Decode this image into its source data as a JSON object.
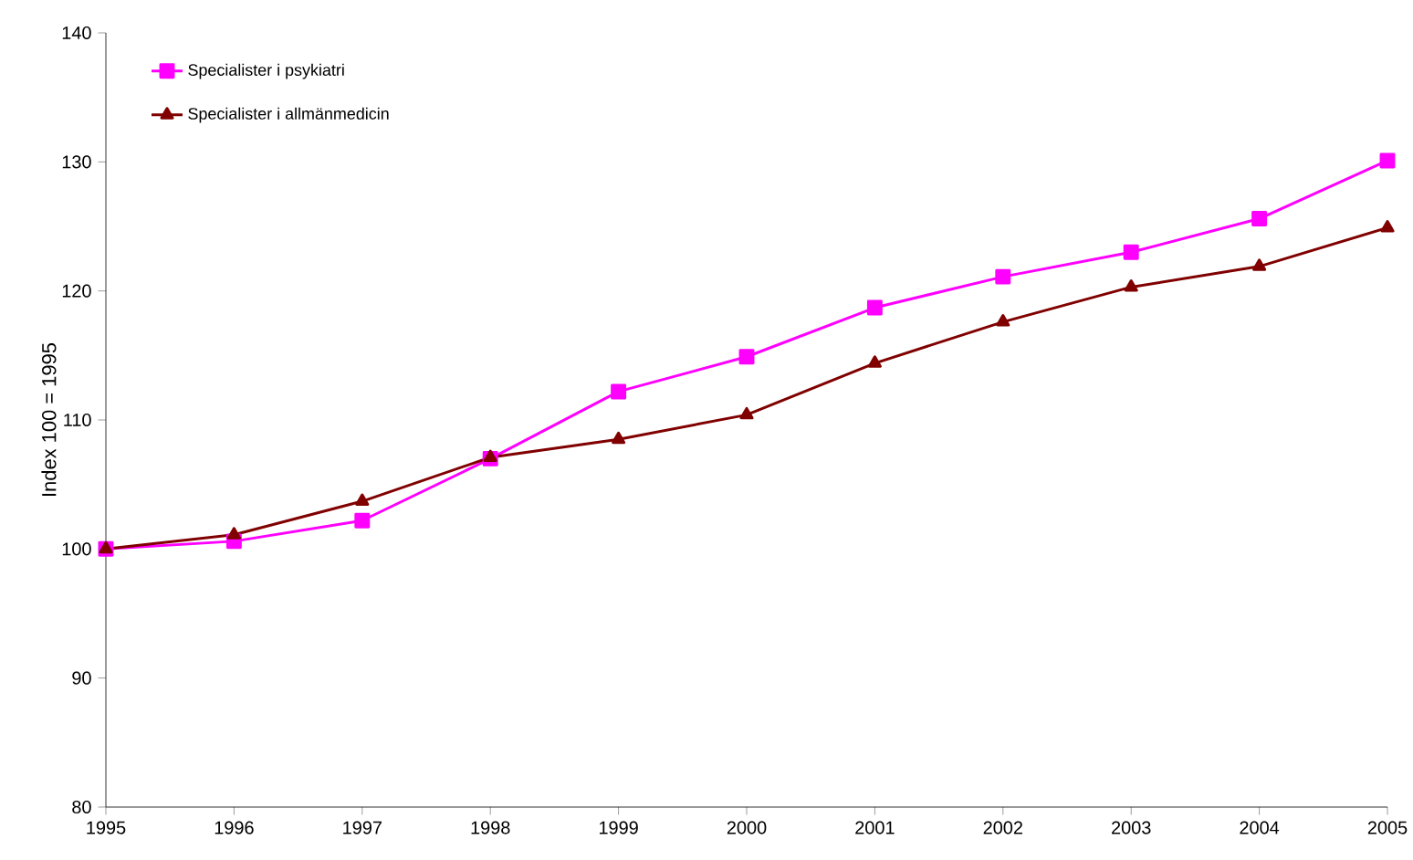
{
  "chart_data": {
    "type": "line",
    "ylabel": "Index 100 = 1995",
    "x": [
      1995,
      1996,
      1997,
      1998,
      1999,
      2000,
      2001,
      2002,
      2003,
      2004,
      2005
    ],
    "series": [
      {
        "name": "Specialister i psykiatri",
        "color": "#ff00ff",
        "marker": "square",
        "values": [
          100,
          100.6,
          102.2,
          107.0,
          112.2,
          114.9,
          118.7,
          121.1,
          123.0,
          125.6,
          130.1
        ]
      },
      {
        "name": "Specialister i allmänmedicin",
        "color": "#800000",
        "marker": "triangle",
        "values": [
          100,
          101.1,
          103.7,
          107.1,
          108.5,
          110.4,
          114.4,
          117.6,
          120.3,
          121.9,
          124.9
        ]
      }
    ],
    "xlim": [
      1995,
      2005
    ],
    "xticks": [
      1995,
      1996,
      1997,
      1998,
      1999,
      2000,
      2001,
      2002,
      2003,
      2004,
      2005
    ],
    "ylim": [
      80,
      140
    ],
    "yticks": [
      80,
      90,
      100,
      110,
      120,
      130,
      140
    ],
    "grid": false,
    "legend": "top left",
    "line_style": "solid"
  }
}
